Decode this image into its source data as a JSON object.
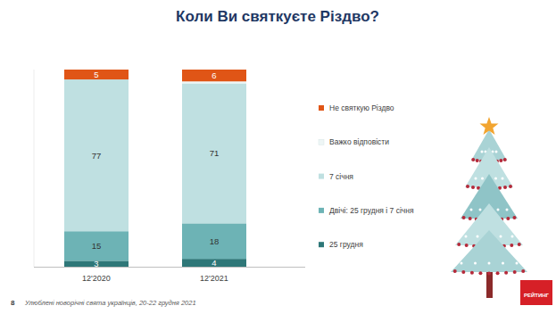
{
  "chart_data": {
    "type": "bar",
    "title": "Коли Ви святкуєте Різдво?",
    "categories": [
      "12'2020",
      "12'2021"
    ],
    "series": [
      {
        "name": "25 грудня",
        "color": "#2e7778",
        "values": [
          3,
          4
        ]
      },
      {
        "name": "Двічі: 25 грудня і 7 січня",
        "color": "#6db3b5",
        "values": [
          15,
          18
        ]
      },
      {
        "name": "7 січня",
        "color": "#bfe0e1",
        "values": [
          77,
          71
        ]
      },
      {
        "name": "Важко відповісти",
        "color": "#eef6f6",
        "values": [
          0,
          1
        ],
        "value_labels": [
          null,
          null
        ]
      },
      {
        "name": "Не святкую Різдво",
        "color": "#e05516",
        "values": [
          5,
          6
        ]
      }
    ],
    "ylim": [
      0,
      100
    ],
    "stacked": true,
    "data_labels": true,
    "grid": false,
    "legend": "right",
    "tick_labels": "x",
    "annotations": [
      "8",
      "Улюблені новорічні свята українців, 20-22 грудня 2021",
      "РЕЙТИНГ"
    ]
  }
}
